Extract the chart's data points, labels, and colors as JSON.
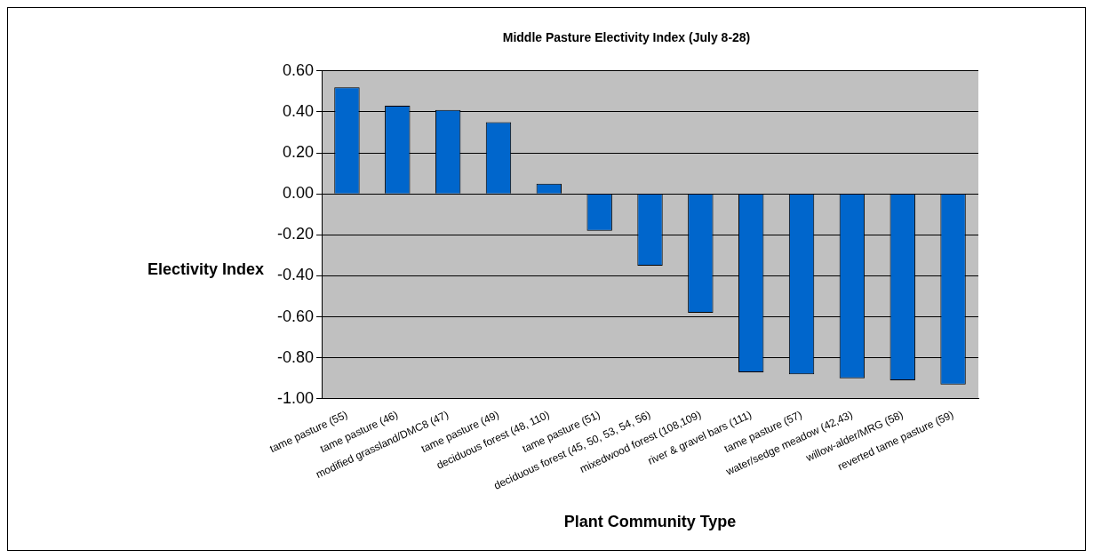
{
  "chart_data": {
    "type": "bar",
    "title": "Middle Pasture Electivity Index (July 8-28)",
    "xlabel": "Plant Community Type",
    "ylabel": "Electivity Index",
    "categories": [
      "tame pasture (55)",
      "tame pasture (46)",
      "modified grassland/DMC8 (47)",
      "tame pasture (49)",
      "deciduous forest (48, 110)",
      "tame pasture (51)",
      "deciduous forest (45, 50, 53, 54, 56)",
      "mixedwood forest (108,109)",
      "river & gravel bars (111)",
      "tame pasture (57)",
      "water/sedge meadow (42,43)",
      "willow-alder/MRG (58)",
      "reverted tame pasture (59)"
    ],
    "values": [
      0.52,
      0.43,
      0.41,
      0.35,
      0.05,
      -0.18,
      -0.35,
      -0.58,
      -0.87,
      -0.88,
      -0.9,
      -0.91,
      -0.93
    ],
    "color": "#0066cc",
    "ylim": [
      -1,
      0.6
    ],
    "yticks": [
      {
        "value": -1,
        "label": "-1.00"
      },
      {
        "value": -0.8,
        "label": "-0.80"
      },
      {
        "value": -0.6,
        "label": "-0.60"
      },
      {
        "value": -0.4,
        "label": "-0.40"
      },
      {
        "value": -0.2,
        "label": "-0.20"
      },
      {
        "value": 0,
        "label": "0.00"
      },
      {
        "value": 0.2,
        "label": "0.20"
      },
      {
        "value": 0.4,
        "label": "0.40"
      },
      {
        "value": 0.6,
        "label": "0.60"
      }
    ],
    "grid": "y",
    "legend": false
  }
}
